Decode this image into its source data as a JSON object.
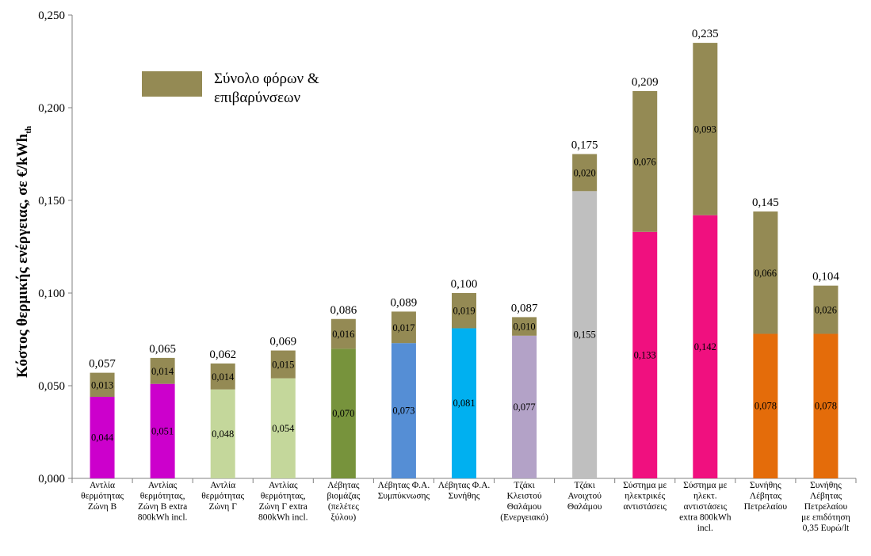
{
  "chart_data": {
    "type": "bar",
    "stacked": true,
    "title": "",
    "xlabel": "",
    "ylabel": "Κόστος θερμικής ενέργειας, σε  €/kWh",
    "ylabel_subscript": "th",
    "ylim": [
      0,
      0.25
    ],
    "yticks": [
      "0,000",
      "0,050",
      "0,100",
      "0,150",
      "0,200",
      "0,250"
    ],
    "grid": false,
    "legend": {
      "position": "top-left",
      "label_line1": "Σύνολο φόρων &",
      "label_line2": "επιβαρύνσεων",
      "color": "#948a54"
    },
    "categories": [
      [
        "Αντλία",
        "θερμότητας",
        "Ζώνη Β"
      ],
      [
        "Αντλίας",
        "θερμότητας,",
        "Ζώνη Β extra",
        "800kWh incl."
      ],
      [
        "Αντλία",
        "θερμότητας",
        "Ζώνη Γ"
      ],
      [
        "Αντλίας",
        "θερμότητας,",
        "Ζώνη Γ extra",
        "800kWh incl."
      ],
      [
        "Λέβητας",
        "βιομάζας",
        "(πελέτες",
        "ξύλου)"
      ],
      [
        "Λέβητας Φ.Α.",
        "Συμπύκνωσης"
      ],
      [
        "Λέβητας Φ.Α.",
        "Συνήθης"
      ],
      [
        "Τζάκι",
        "Κλειστού",
        "Θαλάμου",
        "(Ενεργειακό)"
      ],
      [
        "Τζάκι",
        "Ανοιχτού",
        "Θαλάμου"
      ],
      [
        "Σύστημα με",
        "ηλεκτρικές",
        "αντιστάσεις"
      ],
      [
        "Σύστημα με",
        "ηλεκτ.",
        "αντιστάσεις",
        "extra 800kWh",
        "incl."
      ],
      [
        "Συνήθης",
        "Λέβητας",
        "Πετρελαίου"
      ],
      [
        "Συνήθης",
        "Λέβητας",
        "Πετρελαίου",
        "με επιδότηση",
        "0,35 Ευρώ/lt"
      ]
    ],
    "base_values": [
      0.044,
      0.051,
      0.048,
      0.054,
      0.07,
      0.073,
      0.081,
      0.077,
      0.155,
      0.133,
      0.142,
      0.078,
      0.078
    ],
    "base_labels": [
      "0,044",
      "0,051",
      "0,048",
      "0,054",
      "0,070",
      "0,073",
      "0,081",
      "0,077",
      "0,155",
      "0,133",
      "0,142",
      "0,078",
      "0,078"
    ],
    "base_colors": [
      "#cc00cc",
      "#cc00cc",
      "#c4d79b",
      "#c4d79b",
      "#77933c",
      "#558ed5",
      "#00b0f0",
      "#b3a2c7",
      "#bfbfbf",
      "#f0107f",
      "#f0107f",
      "#e46c0a",
      "#e46c0a"
    ],
    "tax_values": [
      0.013,
      0.014,
      0.014,
      0.015,
      0.016,
      0.017,
      0.019,
      0.01,
      0.02,
      0.076,
      0.093,
      0.066,
      0.026
    ],
    "tax_labels": [
      "0,013",
      "0,014",
      "0,014",
      "0,015",
      "0,016",
      "0,017",
      "0,019",
      "0,010",
      "0,020",
      "0,076",
      "0,093",
      "0,066",
      "0,026"
    ],
    "tax_color": "#948a54",
    "totals": [
      0.057,
      0.065,
      0.062,
      0.069,
      0.086,
      0.089,
      0.1,
      0.087,
      0.175,
      0.209,
      0.235,
      0.145,
      0.104
    ],
    "total_labels": [
      "0,057",
      "0,065",
      "0,062",
      "0,069",
      "0,086",
      "0,089",
      "0,100",
      "0,087",
      "0,175",
      "0,209",
      "0,235",
      "0,145",
      "0,104"
    ]
  }
}
